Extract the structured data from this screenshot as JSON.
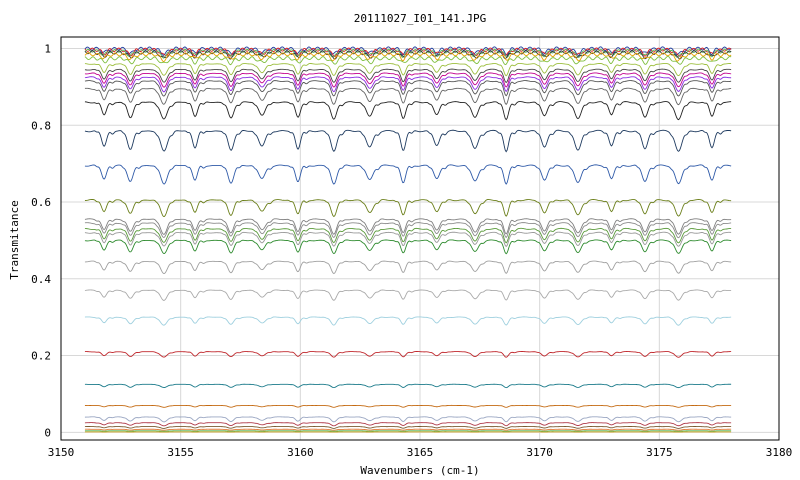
{
  "chart_data": {
    "type": "line",
    "title": "20111027_I01_141.JPG",
    "xlabel": "Wavenumbers (cm-1)",
    "ylabel": "Transmitance",
    "xlim": [
      3150,
      3180
    ],
    "ylim": [
      -0.02,
      1.03
    ],
    "xticks": [
      3150,
      3155,
      3160,
      3165,
      3170,
      3175,
      3180
    ],
    "yticks": [
      0,
      0.2,
      0.4,
      0.6,
      0.8,
      1
    ],
    "ytick_labels": [
      "0",
      "0.2",
      "0.4",
      "0.6",
      "0.8",
      "1"
    ],
    "x_range_of_series": [
      3151,
      3178
    ],
    "grid": true,
    "absorption_line_positions": [
      3151.8,
      3152.9,
      3154.3,
      3155.6,
      3157.1,
      3158.4,
      3159.9,
      3161.4,
      3162.9,
      3164.3,
      3165.7,
      3167.3,
      3168.6,
      3170.2,
      3171.6,
      3173.0,
      3174.4,
      3175.8,
      3177.2
    ],
    "series": [
      {
        "baseline": 1.0,
        "color": "#1f3fa0"
      },
      {
        "baseline": 0.997,
        "color": "#d7191c"
      },
      {
        "baseline": 0.994,
        "color": "#5cb85c"
      },
      {
        "baseline": 0.99,
        "color": "#333333"
      },
      {
        "baseline": 0.985,
        "color": "#e6a100"
      },
      {
        "baseline": 0.975,
        "color": "#7fbf3f"
      },
      {
        "baseline": 0.96,
        "color": "#9dbf3f"
      },
      {
        "baseline": 0.945,
        "color": "#444444"
      },
      {
        "baseline": 0.935,
        "color": "#c2008f"
      },
      {
        "baseline": 0.925,
        "color": "#8a2be2"
      },
      {
        "baseline": 0.915,
        "color": "#555555"
      },
      {
        "baseline": 0.895,
        "color": "#666666"
      },
      {
        "baseline": 0.86,
        "color": "#222222"
      },
      {
        "baseline": 0.785,
        "color": "#1e3a5f"
      },
      {
        "baseline": 0.695,
        "color": "#2f5aa8"
      },
      {
        "baseline": 0.605,
        "color": "#6b7f1a"
      },
      {
        "baseline": 0.555,
        "color": "#808080"
      },
      {
        "baseline": 0.545,
        "color": "#8c8c8c"
      },
      {
        "baseline": 0.53,
        "color": "#5a9a3a"
      },
      {
        "baseline": 0.52,
        "color": "#999999"
      },
      {
        "baseline": 0.5,
        "color": "#2e8b2e"
      },
      {
        "baseline": 0.445,
        "color": "#a0a0a0"
      },
      {
        "baseline": 0.37,
        "color": "#aaaaaa"
      },
      {
        "baseline": 0.3,
        "color": "#9fd0df"
      },
      {
        "baseline": 0.21,
        "color": "#c0282d"
      },
      {
        "baseline": 0.125,
        "color": "#1a7a8a"
      },
      {
        "baseline": 0.07,
        "color": "#c46a12"
      },
      {
        "baseline": 0.04,
        "color": "#9aa6c2"
      },
      {
        "baseline": 0.025,
        "color": "#b03a48"
      },
      {
        "baseline": 0.015,
        "color": "#7a5a30"
      },
      {
        "baseline": 0.008,
        "color": "#e07b39"
      },
      {
        "baseline": 0.004,
        "color": "#4caf50"
      },
      {
        "baseline": 0.001,
        "color": "#d9a520"
      }
    ]
  }
}
